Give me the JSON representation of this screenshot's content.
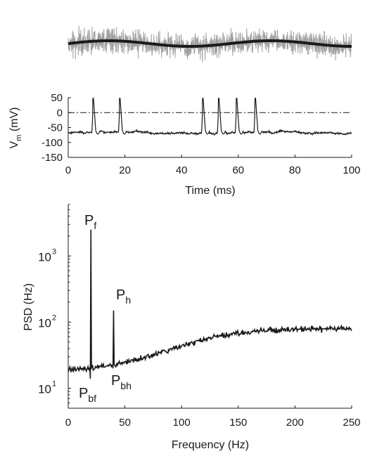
{
  "chart_data": [
    {
      "type": "line",
      "panel": "input-stimulus",
      "series": [
        {
          "name": "",
          "description_visible": "gray noisy trace",
          "color": "#a0a0a0"
        },
        {
          "name": "",
          "description_visible": "black slow sinusoid",
          "color": "#1a1a1a"
        }
      ],
      "axes_visible": false
    },
    {
      "type": "line",
      "panel": "membrane-potential",
      "xlabel": "Time (ms)",
      "ylabel_main": "V",
      "ylabel_sub": "m",
      "ylabel_unit": "(mV)",
      "xlim": [
        0,
        100
      ],
      "ylim": [
        -150,
        50
      ],
      "xticks": [
        0,
        20,
        40,
        60,
        80,
        100
      ],
      "yticks": [
        50,
        0,
        -50,
        -100,
        -150
      ],
      "threshold": 0,
      "baseline": -67,
      "spike_times": [
        8.7,
        18.1,
        47.4,
        53.0,
        59.3,
        65.9
      ],
      "spike_peak": 48,
      "color": "#1a1a1a"
    },
    {
      "type": "line",
      "panel": "power-spectrum",
      "xlabel": "Frequency (Hz)",
      "ylabel": "PSD (Hz)",
      "xlim": [
        0,
        250
      ],
      "ylog": true,
      "ylim": [
        5,
        6000
      ],
      "xticks": [
        0,
        50,
        100,
        150,
        200,
        250
      ],
      "yticks": [
        10,
        100,
        1000
      ],
      "ytick_labels": [
        {
          "base": "10",
          "exp": "1"
        },
        {
          "base": "10",
          "exp": "2"
        },
        {
          "base": "10",
          "exp": "3"
        }
      ],
      "peaks": [
        {
          "x": 20,
          "y": 2500
        },
        {
          "x": 40,
          "y": 150
        }
      ],
      "dips": [
        {
          "x": 20,
          "y": 14
        },
        {
          "x": 40,
          "y": 20
        }
      ],
      "annotations": [
        {
          "main": "P",
          "sub": "f"
        },
        {
          "main": "P",
          "sub": "h"
        },
        {
          "main": "P",
          "sub": "bf"
        },
        {
          "main": "P",
          "sub": "bh"
        }
      ],
      "color": "#1a1a1a"
    }
  ]
}
